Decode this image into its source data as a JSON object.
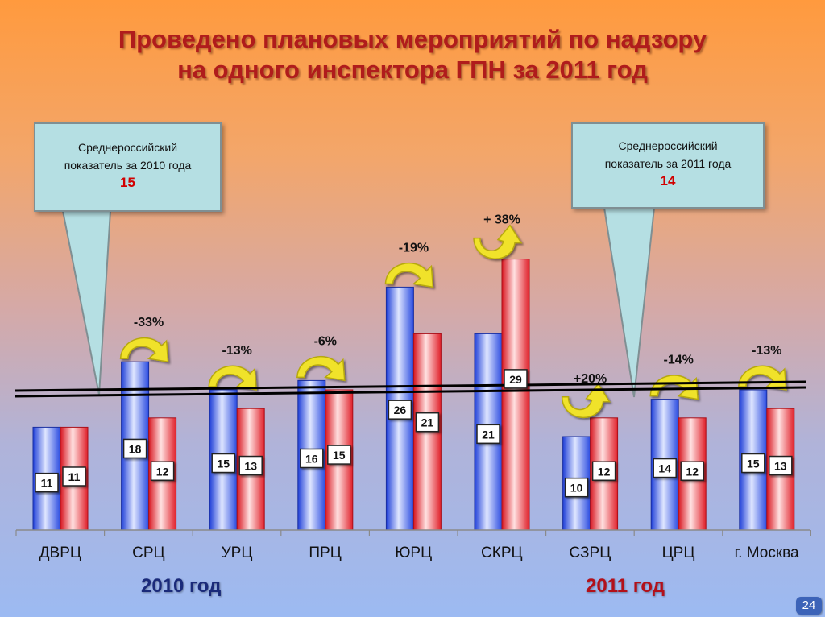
{
  "title_line1": "Проведено плановых мероприятий по надзору",
  "title_line2": "на одного инспектора ГПН за 2011 год",
  "callouts": [
    {
      "line1": "Среднероссийский",
      "line2": "показатель за  2010 года",
      "value": "15"
    },
    {
      "line1": "Среднероссийский",
      "line2": "показатель за 2011 года",
      "value": "14"
    }
  ],
  "year_labels": {
    "y2010": "2010 год",
    "y2011": "2011 год"
  },
  "page_number": "24",
  "colors": {
    "blue_series": "#3b5fe8",
    "red_series": "#e8323a",
    "title": "#b01c1c",
    "callout_value": "#d10000",
    "arrow": "#f0e22a"
  },
  "chart_data": {
    "type": "bar",
    "categories": [
      "ДВРЦ",
      "СРЦ",
      "УРЦ",
      "ПРЦ",
      "ЮРЦ",
      "СКРЦ",
      "СЗРЦ",
      "ЦРЦ",
      "г. Москва"
    ],
    "series": [
      {
        "name": "2010 год",
        "values": [
          11,
          18,
          15,
          16,
          26,
          21,
          10,
          14,
          15
        ]
      },
      {
        "name": "2011 год",
        "values": [
          11,
          12,
          13,
          15,
          21,
          29,
          12,
          12,
          13
        ]
      }
    ],
    "change_labels": [
      "",
      "-33%",
      "-13%",
      "-6%",
      "-19%",
      "+ 38%",
      "+20%",
      "-14%",
      "-13%"
    ],
    "change_direction": [
      "none",
      "down",
      "down",
      "down",
      "down",
      "up",
      "up",
      "down",
      "down"
    ],
    "reference_lines": [
      15,
      14
    ],
    "ylim": [
      0,
      33
    ],
    "grid": false,
    "legend": "bottom"
  }
}
